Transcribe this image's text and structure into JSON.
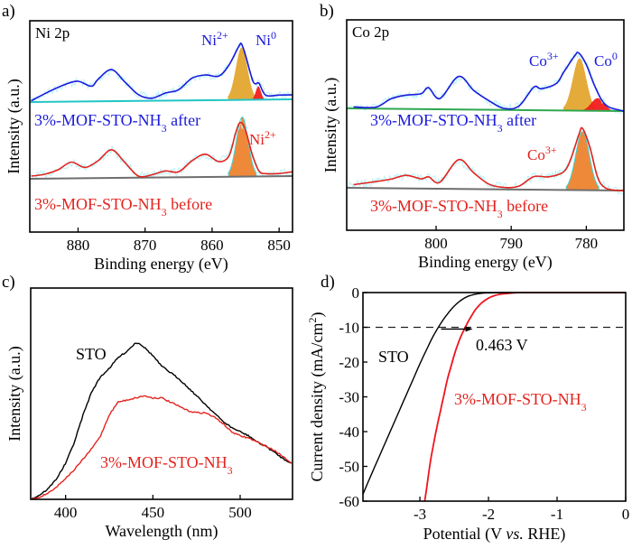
{
  "chart_data": [
    {
      "panel_label": "a)",
      "type": "line",
      "title": "Ni 2p",
      "xlabel": "Binding energy (eV)",
      "ylabel": "Intensity (a.u.)",
      "xlim": [
        887.2,
        848
      ],
      "x_ticks": [
        880,
        870,
        860,
        850
      ],
      "x_tick_labels": [
        "880",
        "870",
        "860",
        "850"
      ],
      "y_ticks": [],
      "series": [
        {
          "name": "3%-MOF-STO-NH3 after",
          "label_main": "3%-MOF-STO-NH",
          "label_sub": "3",
          "label_suffix": " after",
          "color": "#1a1adc",
          "x": [
            887,
            884,
            882,
            880,
            878,
            877,
            875,
            873,
            871,
            869,
            867,
            865,
            863,
            861,
            859,
            857.5,
            856,
            855.6,
            855,
            854,
            853.5,
            853,
            852,
            850,
            848
          ],
          "y": [
            0.02,
            0.18,
            0.27,
            0.32,
            0.24,
            0.35,
            0.5,
            0.3,
            0.1,
            0.04,
            0.12,
            0.17,
            0.35,
            0.4,
            0.38,
            0.55,
            0.85,
            0.88,
            0.7,
            0.32,
            0.25,
            0.26,
            0.07,
            0.07,
            0.07
          ]
        },
        {
          "name": "3%-MOF-STO-NH3 before",
          "label_main": "3%-MOF-STO-NH",
          "label_sub": "3",
          "label_suffix": " before",
          "color": "#e3231e",
          "x": [
            887,
            885,
            883,
            881,
            879,
            877,
            875,
            873,
            871,
            869,
            867,
            865,
            863,
            861,
            859,
            857.5,
            856.5,
            855.8,
            855,
            854,
            853,
            852,
            850,
            848
          ],
          "y": [
            0.05,
            0.08,
            0.16,
            0.3,
            0.2,
            0.32,
            0.52,
            0.28,
            0.03,
            0.05,
            0.12,
            0.1,
            0.3,
            0.42,
            0.28,
            0.38,
            0.8,
            1.0,
            0.85,
            0.4,
            0.1,
            0.05,
            0.05,
            0.08
          ]
        }
      ],
      "peaks": [
        {
          "label": "Ni",
          "sup": "2+",
          "state": "after",
          "center": 855.6,
          "color": "#e3a72f"
        },
        {
          "label": "Ni",
          "sup": "0",
          "state": "after",
          "center": 853.1,
          "color": "#f21c1c"
        },
        {
          "label": "Ni",
          "sup": "2+",
          "state": "before",
          "center": 855.5,
          "color": "#ee8330"
        }
      ]
    },
    {
      "panel_label": "b)",
      "type": "line",
      "title": "Co 2p",
      "xlabel": "Binding energy (eV)",
      "ylabel": "Intensity (a.u.)",
      "xlim": [
        811.9,
        775
      ],
      "x_ticks": [
        800,
        790,
        780
      ],
      "x_tick_labels": [
        "800",
        "790",
        "780"
      ],
      "y_ticks": [],
      "series": [
        {
          "name": "3%-MOF-STO-NH3 after",
          "label_main": "3%-MOF-STO-NH",
          "label_sub": "3",
          "label_suffix": " after",
          "color": "#1a1adc",
          "x": [
            811,
            808,
            806,
            804,
            802,
            801,
            799.5,
            797,
            795,
            793,
            791,
            789,
            787,
            786,
            784,
            783,
            781.5,
            781,
            780,
            779,
            778,
            777,
            775
          ],
          "y": [
            0.02,
            0.02,
            0.13,
            0.18,
            0.2,
            0.28,
            0.14,
            0.43,
            0.25,
            0.12,
            0.02,
            0.05,
            0.3,
            0.28,
            0.35,
            0.5,
            0.72,
            0.75,
            0.6,
            0.35,
            0.15,
            0.05,
            0.0
          ]
        },
        {
          "name": "3%-MOF-STO-NH3 before",
          "label_main": "3%-MOF-STO-NH",
          "label_sub": "3",
          "label_suffix": " before",
          "color": "#e3231e",
          "x": [
            811,
            808,
            806,
            804,
            802,
            801,
            799.5,
            797,
            795,
            793,
            791,
            789,
            787,
            785,
            783,
            782,
            781,
            780.5,
            779.5,
            778.5,
            777.5,
            776,
            775
          ],
          "y": [
            0.05,
            0.1,
            0.14,
            0.2,
            0.15,
            0.18,
            0.1,
            0.45,
            0.25,
            0.08,
            0.03,
            0.05,
            0.2,
            0.2,
            0.28,
            0.5,
            0.85,
            0.95,
            0.65,
            0.2,
            0.04,
            0.0,
            0.0
          ]
        }
      ],
      "peaks": [
        {
          "label": "Co",
          "sup": "3+",
          "state": "after",
          "center": 780.9,
          "color": "#e3a72f"
        },
        {
          "label": "Co",
          "sup": "0",
          "state": "after",
          "center": 778.5,
          "color": "#f21c1c"
        },
        {
          "label": "Co",
          "sup": "3+",
          "state": "before",
          "center": 780.5,
          "color": "#ee8330"
        }
      ]
    },
    {
      "panel_label": "c)",
      "type": "line",
      "title": "",
      "xlabel": "Wavelength (nm)",
      "ylabel": "Intensity (a.u.)",
      "xlim": [
        380,
        530
      ],
      "x_ticks": [
        400,
        450,
        500
      ],
      "x_tick_labels": [
        "400",
        "450",
        "500"
      ],
      "y_ticks": [],
      "ylim": [
        0,
        1
      ],
      "series": [
        {
          "name": "STO",
          "color": "#000000",
          "x": [
            380,
            385,
            390,
            395,
            400,
            405,
            410,
            415,
            420,
            425,
            430,
            435,
            440,
            442,
            445,
            450,
            455,
            460,
            465,
            470,
            475,
            480,
            485,
            490,
            495,
            500,
            505,
            510,
            515,
            520,
            525,
            530
          ],
          "y": [
            0.0,
            0.02,
            0.05,
            0.1,
            0.17,
            0.27,
            0.4,
            0.51,
            0.58,
            0.62,
            0.67,
            0.7,
            0.74,
            0.74,
            0.72,
            0.68,
            0.63,
            0.6,
            0.57,
            0.53,
            0.49,
            0.45,
            0.41,
            0.37,
            0.34,
            0.32,
            0.3,
            0.27,
            0.25,
            0.22,
            0.19,
            0.17
          ]
        },
        {
          "name": "3%-MOF-STO-NH3",
          "label_main": "3%-MOF-STO-NH",
          "label_sub": "3",
          "label_suffix": "",
          "color": "#e3231e",
          "x": [
            380,
            385,
            390,
            395,
            400,
            405,
            410,
            415,
            420,
            425,
            430,
            435,
            440,
            445,
            450,
            455,
            460,
            465,
            470,
            475,
            480,
            485,
            490,
            495,
            500,
            505,
            510,
            515,
            520,
            525,
            530
          ],
          "y": [
            0.0,
            0.01,
            0.03,
            0.06,
            0.1,
            0.14,
            0.19,
            0.24,
            0.3,
            0.4,
            0.46,
            0.47,
            0.48,
            0.49,
            0.48,
            0.48,
            0.46,
            0.44,
            0.42,
            0.41,
            0.41,
            0.39,
            0.36,
            0.32,
            0.3,
            0.29,
            0.27,
            0.25,
            0.23,
            0.2,
            0.17
          ]
        }
      ]
    },
    {
      "panel_label": "d)",
      "type": "line",
      "title": "",
      "xlabel_main": "Potential (V ",
      "xlabel_italic": "vs.",
      "xlabel_suffix": " RHE)",
      "ylabel_main": "Current density (mA/cm",
      "ylabel_sup": "2",
      "ylabel_suffix": ")",
      "xlim": [
        -3.83,
        0
      ],
      "ylim": [
        -60,
        0
      ],
      "x_ticks": [
        -3,
        -2,
        -1,
        0
      ],
      "x_tick_labels": [
        "-3",
        "-2",
        "-1",
        "0"
      ],
      "y_ticks": [
        0,
        -10,
        -20,
        -30,
        -40,
        -50,
        -60
      ],
      "y_tick_labels": [
        "0",
        "-10",
        "-20",
        "-30",
        "-40",
        "-50",
        "-60"
      ],
      "reference_line": {
        "y": -10,
        "style": "dashed"
      },
      "annotation": {
        "text": "0.463 V",
        "from_x": -2.69,
        "to_x": -2.23,
        "y": -10.5
      },
      "series": [
        {
          "name": "STO",
          "color": "#000000",
          "x": [
            -3.83,
            -3.7,
            -3.6,
            -3.5,
            -3.4,
            -3.3,
            -3.2,
            -3.1,
            -3.0,
            -2.9,
            -2.8,
            -2.7,
            -2.6,
            -2.5,
            -2.4,
            -2.3,
            -2.2,
            -2.1,
            -2.0,
            -1.8,
            -1.5,
            -1.0,
            0
          ],
          "y": [
            -58,
            -52,
            -47.5,
            -43,
            -38.5,
            -34,
            -29.5,
            -25,
            -20.5,
            -16.3,
            -12.3,
            -9,
            -6.2,
            -3.9,
            -2.2,
            -1.1,
            -0.5,
            -0.2,
            -0.1,
            0,
            0,
            0,
            0
          ]
        },
        {
          "name": "3%-MOF-STO-NH3",
          "label_main": "3%-MOF-STO-NH",
          "label_sub": "3",
          "label_suffix": "",
          "color": "#f0141e",
          "x": [
            -2.93,
            -2.9,
            -2.85,
            -2.8,
            -2.75,
            -2.7,
            -2.65,
            -2.6,
            -2.55,
            -2.5,
            -2.45,
            -2.4,
            -2.35,
            -2.3,
            -2.25,
            -2.2,
            -2.15,
            -2.1,
            -2.0,
            -1.9,
            -1.8,
            -1.7,
            -1.6,
            -1.5,
            -1.0,
            0
          ],
          "y": [
            -60,
            -56,
            -49,
            -43.5,
            -38.5,
            -34,
            -29.5,
            -25,
            -21.5,
            -18,
            -15,
            -12.5,
            -10.5,
            -8.5,
            -6.8,
            -5.2,
            -4,
            -3,
            -1.6,
            -0.8,
            -0.4,
            -0.2,
            -0.05,
            0,
            0,
            0
          ]
        }
      ]
    }
  ]
}
